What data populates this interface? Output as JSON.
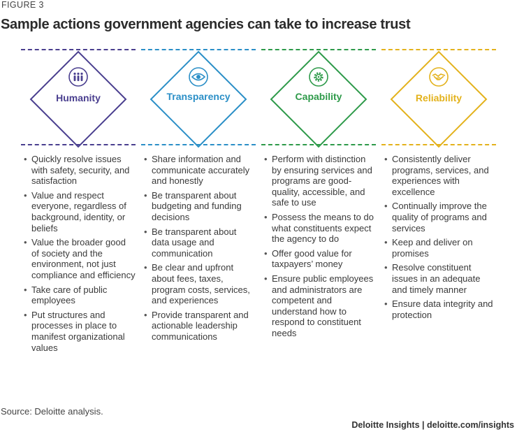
{
  "figure_label": "FIGURE 3",
  "title": "Sample actions government agencies can take to increase trust",
  "columns": [
    {
      "name": "Humanity",
      "color": "#4a3f8f",
      "icon": "people-icon",
      "items": [
        "Quickly resolve issues with safety, security, and satisfaction",
        "Value and respect everyone, regardless of background, identity, or beliefs",
        "Value the broader good of society and the environment, not just compliance and efficiency",
        "Take care of public employees",
        "Put structures and processes in place to manifest organizational values"
      ]
    },
    {
      "name": "Transparency",
      "color": "#2b8fc7",
      "icon": "eye-icon",
      "items": [
        "Share information and communicate accurately and honestly",
        "Be transparent about budgeting and funding decisions",
        "Be transparent about data usage and communication",
        "Be clear and upfront about fees, taxes, program costs, services, and experiences",
        "Provide transparent and actionable leadership communications"
      ]
    },
    {
      "name": "Capability",
      "color": "#2e9a4a",
      "icon": "gear-icon",
      "items": [
        "Perform with distinction by ensuring services and programs are good-quality, accessible, and safe to use",
        "Possess the means to do what constituents expect the agency to do",
        "Offer good value for taxpayers’ money",
        "Ensure public employees and administrators are competent and understand how to respond to constituent needs"
      ]
    },
    {
      "name": "Reliability",
      "color": "#e3b21c",
      "icon": "handshake-icon",
      "items": [
        "Consistently deliver programs, services, and experiences with excellence",
        "Continually improve the quality of programs and services",
        "Keep and deliver on promises",
        "Resolve constituent issues in an adequate and timely manner",
        "Ensure data integrity and protection"
      ]
    }
  ],
  "source": "Source: Deloitte analysis.",
  "credit": "Deloitte Insights | deloitte.com/insights"
}
